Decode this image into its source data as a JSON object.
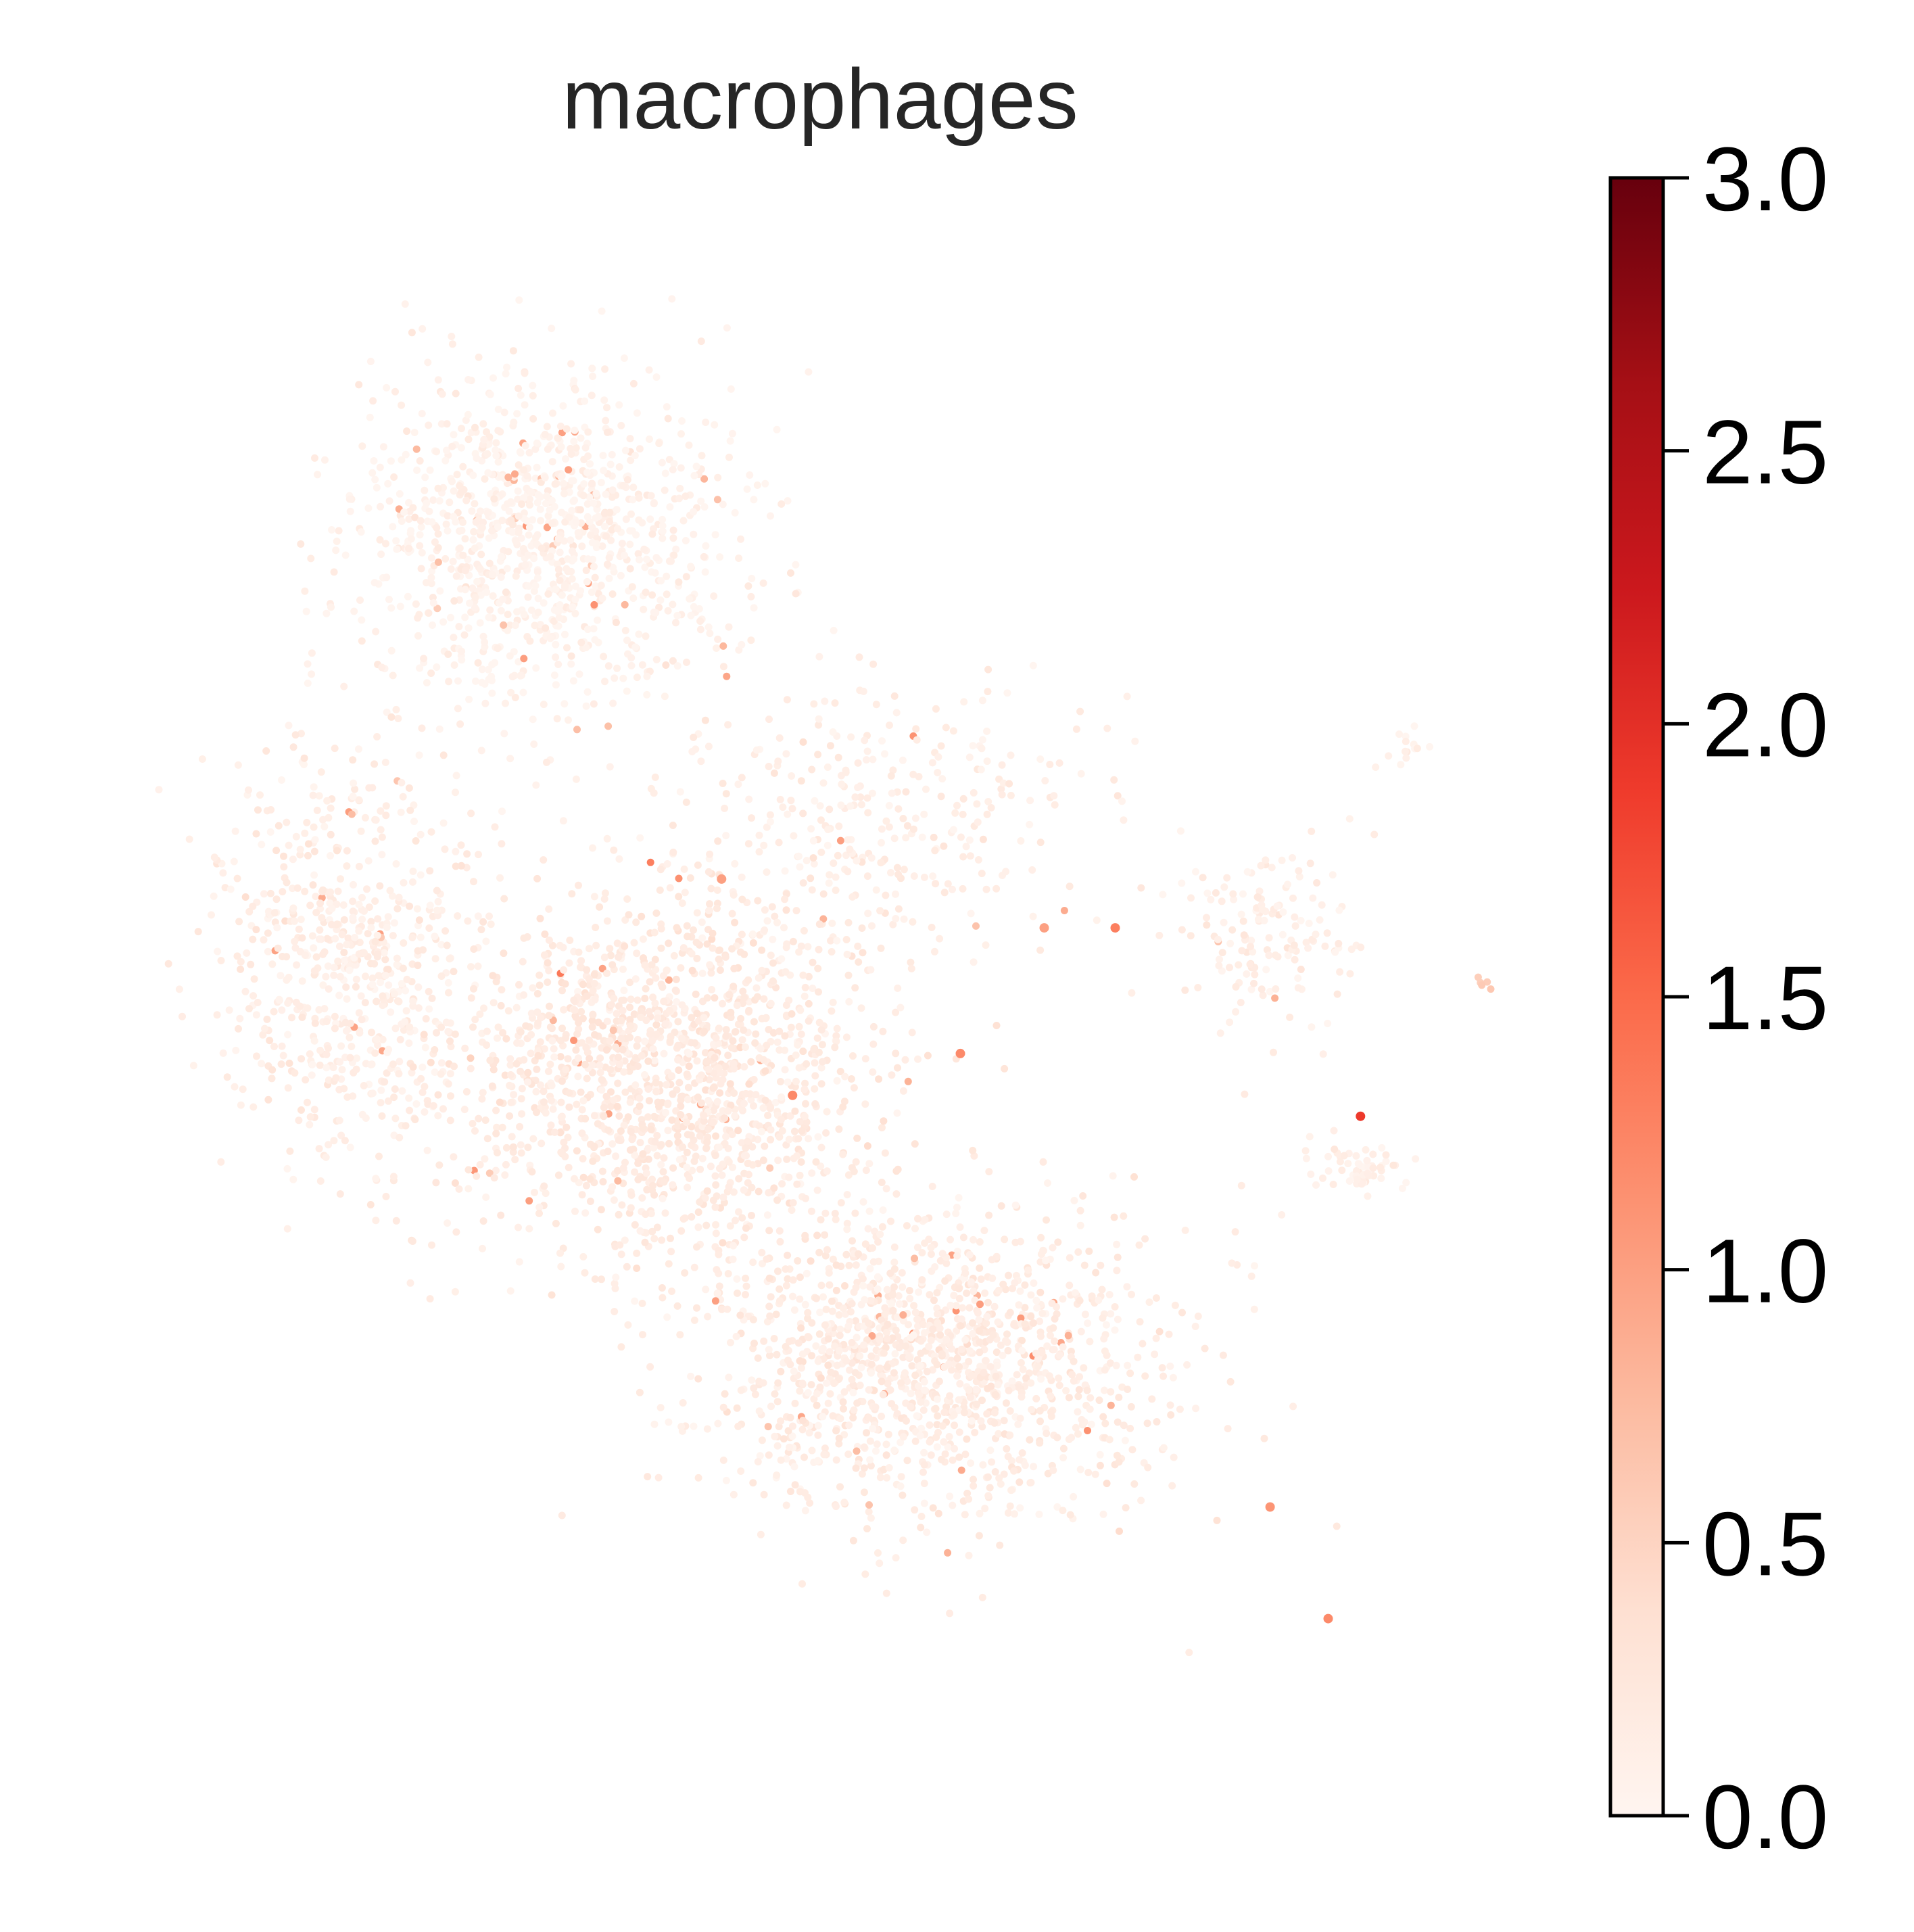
{
  "chart_data": {
    "type": "scatter",
    "title": "macrophages",
    "xlabel": "",
    "ylabel": "",
    "axes_visible": false,
    "grid": false,
    "point_color_scale": {
      "name": "Reds",
      "range": [
        0.0,
        3.0
      ],
      "stops": [
        "#fff5f0",
        "#fee0d2",
        "#fcbba1",
        "#fc9272",
        "#fb6a4a",
        "#ef3b2c",
        "#cb181d",
        "#a50f15",
        "#67000d"
      ]
    },
    "colorbar": {
      "placement": "right",
      "ticks": [
        {
          "value": 0.0,
          "label": "0.0"
        },
        {
          "value": 0.5,
          "label": "0.5"
        },
        {
          "value": 1.0,
          "label": "1.0"
        },
        {
          "value": 1.5,
          "label": "1.5"
        },
        {
          "value": 2.0,
          "label": "2.0"
        },
        {
          "value": 2.5,
          "label": "2.5"
        },
        {
          "value": 3.0,
          "label": "3.0"
        }
      ]
    },
    "clusters": [
      {
        "center": [
          -2.4,
          6.5
        ],
        "spread": [
          2.9,
          2.3
        ],
        "n": 1100,
        "mean_value": 0.05
      },
      {
        "center": [
          -5.3,
          0.4
        ],
        "spread": [
          2.0,
          2.9
        ],
        "n": 700,
        "mean_value": 0.12
      },
      {
        "center": [
          -0.5,
          -1.2
        ],
        "spread": [
          3.1,
          2.6
        ],
        "n": 1500,
        "mean_value": 0.18
      },
      {
        "center": [
          3.7,
          -5.3
        ],
        "spread": [
          3.5,
          2.3
        ],
        "n": 1400,
        "mean_value": 0.15
      },
      {
        "center": [
          2.9,
          2.4
        ],
        "spread": [
          3.6,
          2.3
        ],
        "n": 350,
        "mean_value": 0.12
      },
      {
        "center": [
          8.9,
          0.8
        ],
        "spread": [
          1.3,
          1.4
        ],
        "n": 150,
        "mean_value": 0.12
      },
      {
        "center": [
          10.3,
          -2.5
        ],
        "spread": [
          0.7,
          0.45
        ],
        "n": 60,
        "mean_value": 0.1
      },
      {
        "center": [
          11.0,
          3.5
        ],
        "spread": [
          0.4,
          0.25
        ],
        "n": 14,
        "mean_value": 0.05
      },
      {
        "center": [
          12.2,
          0.1
        ],
        "spread": [
          0.18,
          0.1
        ],
        "n": 5,
        "mean_value": 0.6
      }
    ],
    "highlighted_points": [
      {
        "x": 10.3,
        "y": -1.8,
        "value": 1.9
      },
      {
        "x": 4.1,
        "y": -0.9,
        "value": 1.2
      },
      {
        "x": 1.5,
        "y": -1.5,
        "value": 1.2
      },
      {
        "x": 6.5,
        "y": 0.9,
        "value": 1.3
      },
      {
        "x": 8.9,
        "y": -7.4,
        "value": 1.1
      },
      {
        "x": 9.8,
        "y": -9.0,
        "value": 1.2
      },
      {
        "x": 0.4,
        "y": 1.6,
        "value": 1.0
      },
      {
        "x": 5.4,
        "y": 0.9,
        "value": 1.0
      }
    ]
  }
}
